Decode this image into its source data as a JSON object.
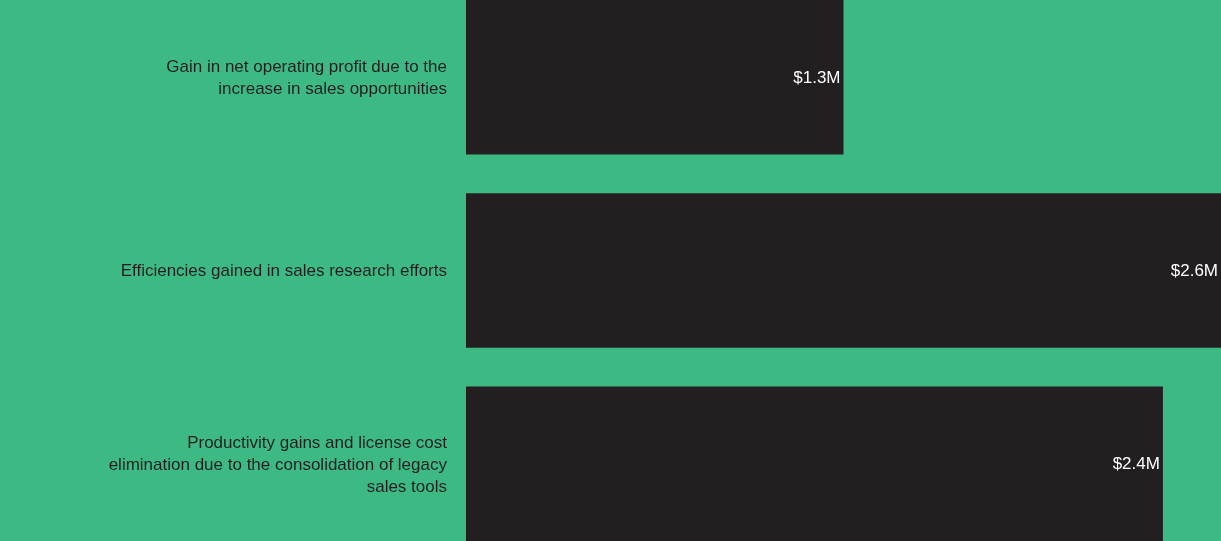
{
  "chart_data": {
    "type": "bar",
    "orientation": "horizontal",
    "categories": [
      "Gain in net operating profit due to the increase in sales opportunities",
      "Efficiencies gained in sales research efforts",
      "Productivity gains and license cost elimination due to the consolidation of legacy sales tools"
    ],
    "values": [
      1.3,
      2.6,
      2.4
    ],
    "value_labels": [
      "$1.3M",
      "$2.6M",
      "$2.4M"
    ],
    "color": "#231f20",
    "grid": false,
    "legend": false
  }
}
